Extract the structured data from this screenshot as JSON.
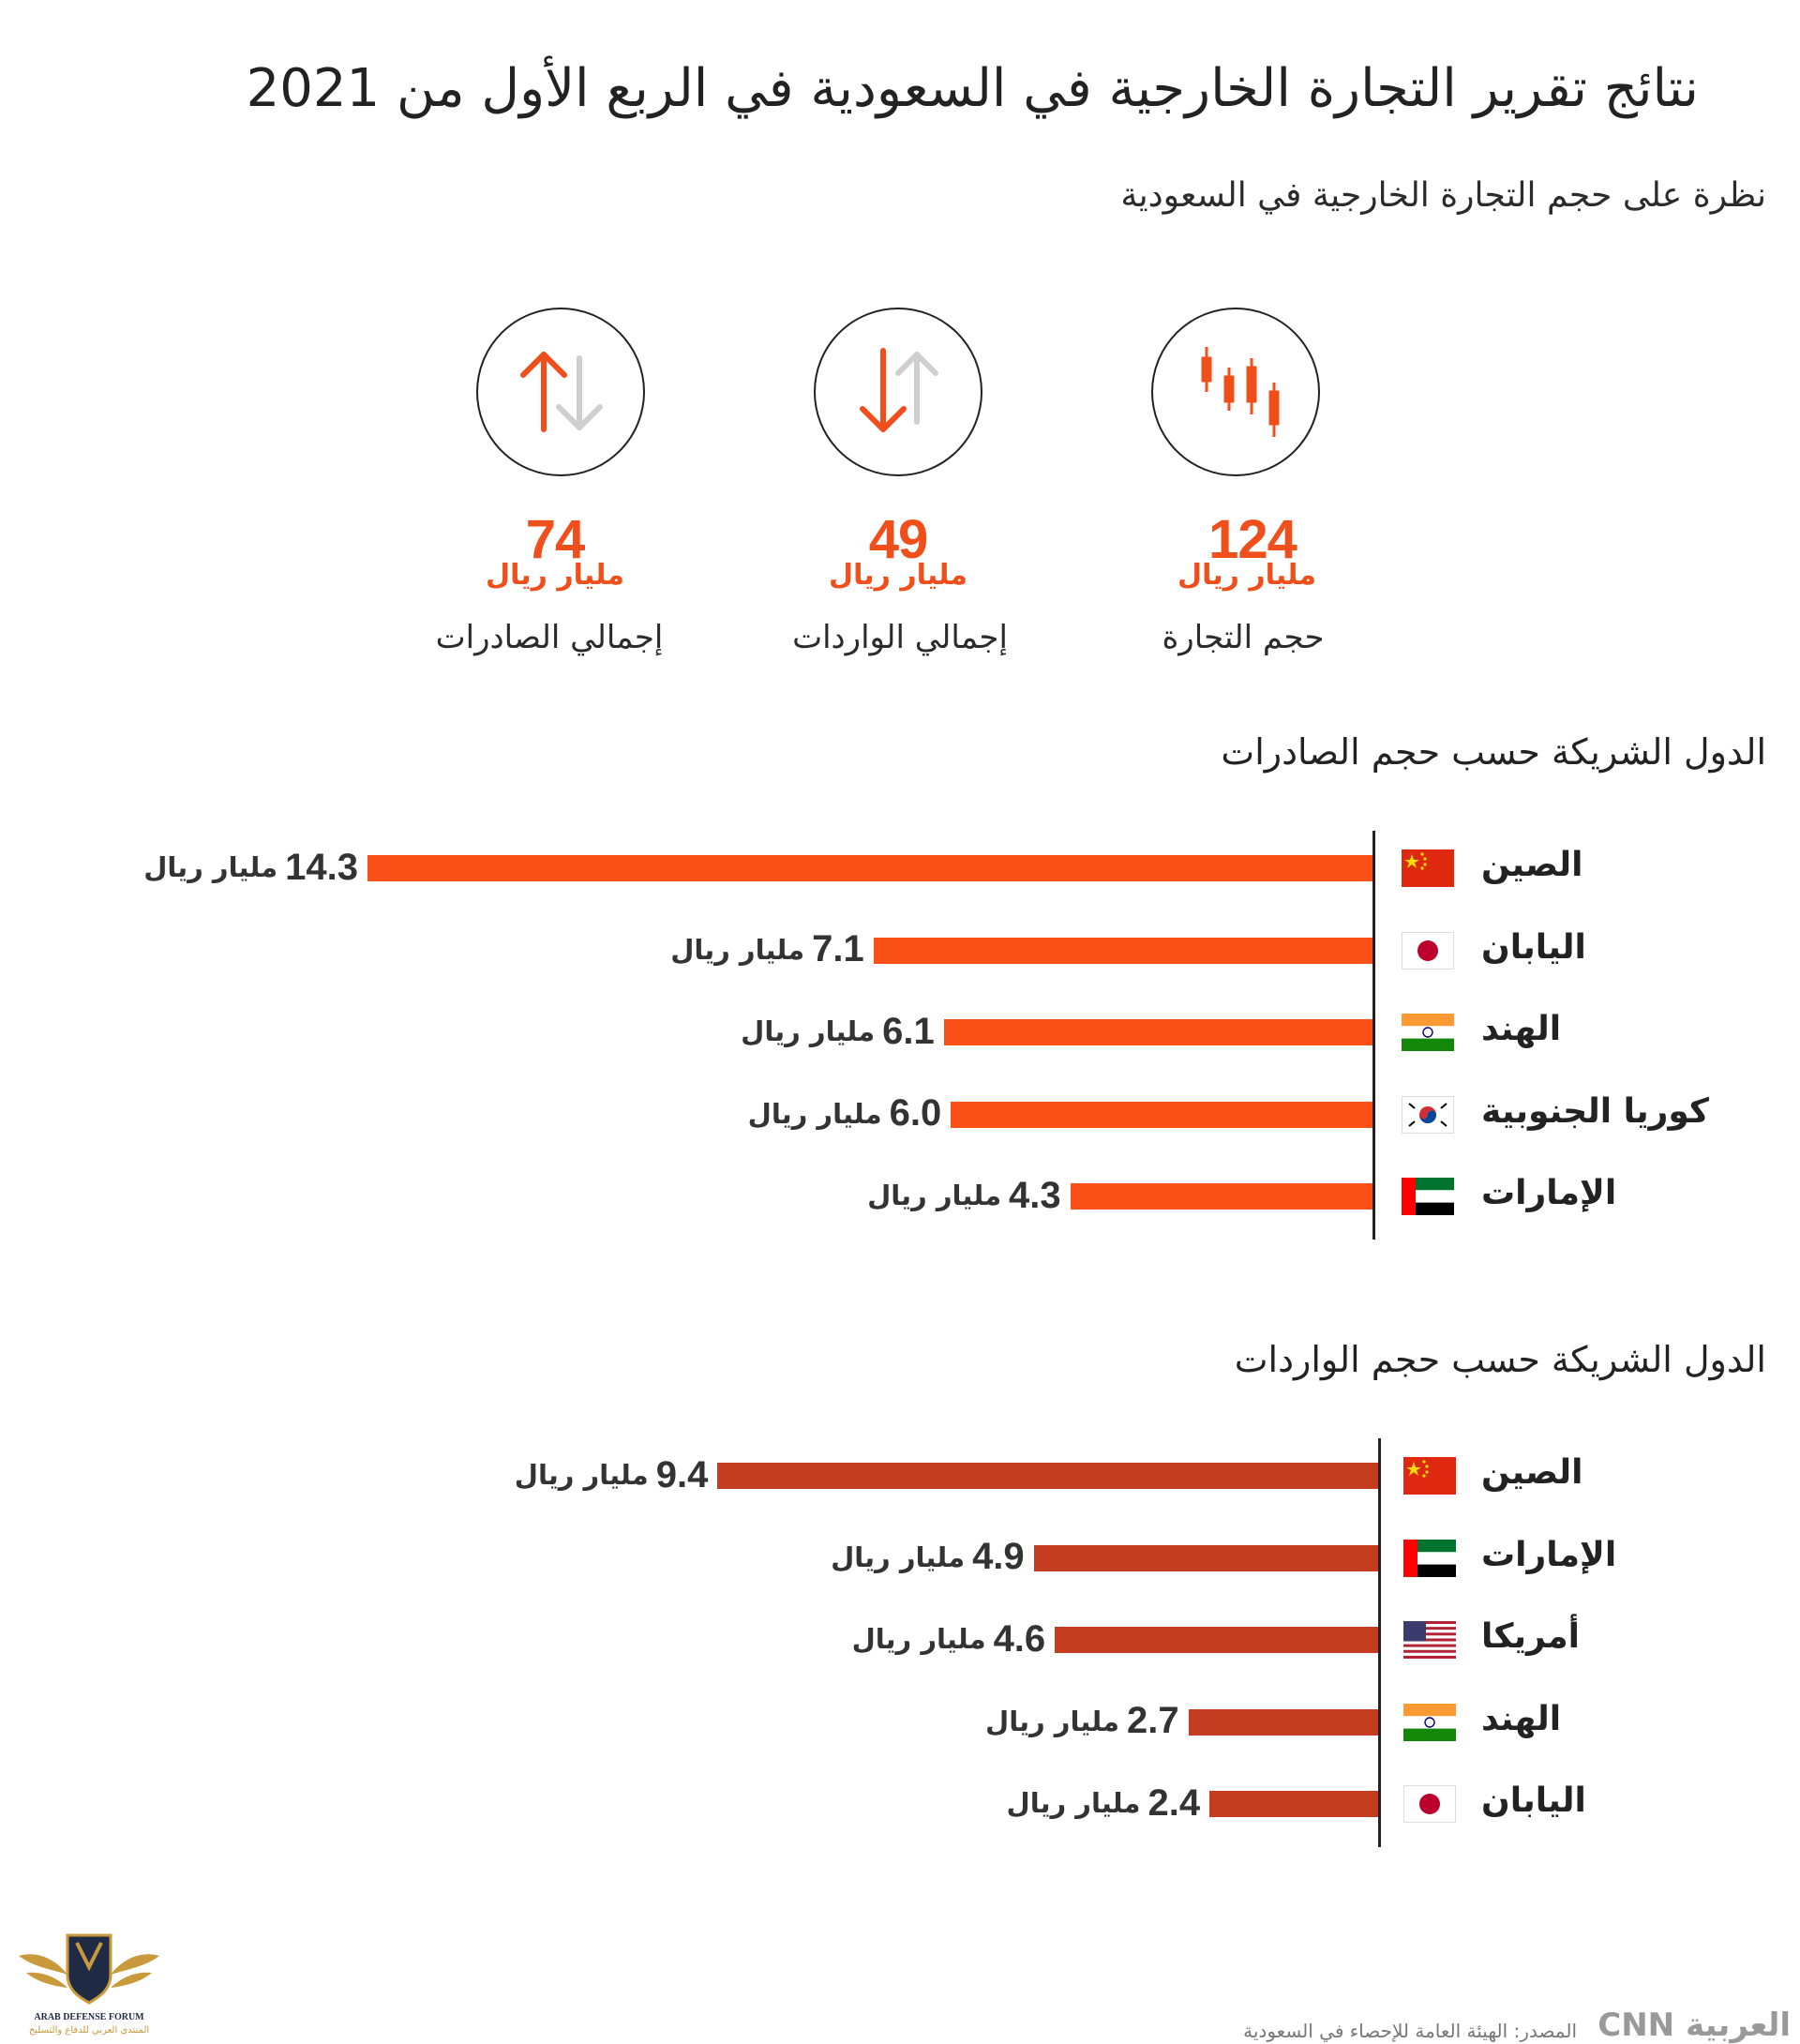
{
  "header": {
    "title": "نتائج تقرير التجارة الخارجية في السعودية في الربع الأول من 2021",
    "subtitle": "نظرة على حجم التجارة الخارجية في السعودية"
  },
  "kpis": [
    {
      "value": "124",
      "unit": "مليار ريال",
      "label": "حجم التجارة",
      "icon": "candlestick-icon"
    },
    {
      "value": "49",
      "unit": "مليار ريال",
      "label": "إجمالي الواردات",
      "icon": "arrow-down-icon"
    },
    {
      "value": "74",
      "unit": "مليار ريال",
      "label": "إجمالي الصادرات",
      "icon": "arrow-up-icon"
    }
  ],
  "colors": {
    "accent": "#f04e1a",
    "export_bar": "#fb5018",
    "import_bar": "#c53d21"
  },
  "chart_data": [
    {
      "type": "bar",
      "orientation": "horizontal",
      "title": "الدول الشريكة حسب حجم الصادرات",
      "unit": "مليار ريال",
      "categories": [
        "الصين",
        "اليابان",
        "الهند",
        "كوريا الجنوبية",
        "الإمارات"
      ],
      "flags": [
        "china",
        "japan",
        "india",
        "south-korea",
        "uae"
      ],
      "values": [
        14.3,
        7.1,
        6.1,
        6.0,
        4.3
      ],
      "labels": [
        "14.3",
        "7.1",
        "6.1",
        "6.0",
        "4.3"
      ],
      "xlim": [
        0,
        14.3
      ]
    },
    {
      "type": "bar",
      "orientation": "horizontal",
      "title": "الدول الشريكة حسب حجم الواردات",
      "unit": "مليار ريال",
      "categories": [
        "الصين",
        "الإمارات",
        "أمريكا",
        "الهند",
        "اليابان"
      ],
      "flags": [
        "china",
        "uae",
        "usa",
        "india",
        "japan"
      ],
      "values": [
        9.4,
        4.9,
        4.6,
        2.7,
        2.4
      ],
      "labels": [
        "9.4",
        "4.9",
        "4.6",
        "2.7",
        "2.4"
      ],
      "xlim": [
        0,
        14.3
      ]
    }
  ],
  "footer": {
    "source": "المصدر: الهيئة العامة للإحصاء في السعودية",
    "brand": "العربية CNN"
  },
  "logo": {
    "line1": "ARAB DEFENSE FORUM",
    "line2": "المنتدى العربي للدفاع والتسليح"
  }
}
